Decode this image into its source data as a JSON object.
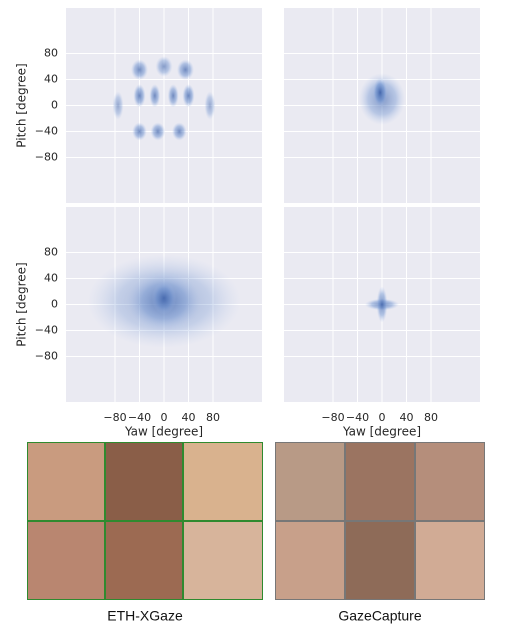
{
  "chart_data": [
    {
      "type": "density2d",
      "color": "#4c72b0",
      "xlim": [
        -160,
        160
      ],
      "ylim": [
        -150,
        150
      ],
      "xticks": [
        -80,
        -40,
        0,
        40,
        80
      ],
      "yticks": [
        80,
        40,
        0,
        -40,
        -80
      ],
      "grid": true,
      "y_label": "Pitch [degree]",
      "ytick_labels": [
        {
          "value": 80,
          "label": "80"
        },
        {
          "value": 40,
          "label": "40"
        },
        {
          "value": 0,
          "label": "0"
        },
        {
          "value": -40,
          "label": "−40"
        },
        {
          "value": -80,
          "label": "−80"
        }
      ],
      "blobs": [
        {
          "x": -75,
          "y": 0,
          "x_spread": 9,
          "y_spread": 22,
          "density": 0.5
        },
        {
          "x": 75,
          "y": 0,
          "x_spread": 9,
          "y_spread": 22,
          "density": 0.5
        },
        {
          "x": -40,
          "y": 55,
          "x_spread": 14,
          "y_spread": 16,
          "density": 0.7
        },
        {
          "x": 0,
          "y": 60,
          "x_spread": 14,
          "y_spread": 16,
          "density": 0.6
        },
        {
          "x": 35,
          "y": 55,
          "x_spread": 14,
          "y_spread": 16,
          "density": 0.7
        },
        {
          "x": -40,
          "y": 15,
          "x_spread": 10,
          "y_spread": 18,
          "density": 0.75
        },
        {
          "x": -15,
          "y": 15,
          "x_spread": 9,
          "y_spread": 18,
          "density": 0.7
        },
        {
          "x": 15,
          "y": 15,
          "x_spread": 9,
          "y_spread": 18,
          "density": 0.7
        },
        {
          "x": 40,
          "y": 15,
          "x_spread": 10,
          "y_spread": 18,
          "density": 0.75
        },
        {
          "x": -40,
          "y": -40,
          "x_spread": 12,
          "y_spread": 14,
          "density": 0.7
        },
        {
          "x": -10,
          "y": -40,
          "x_spread": 12,
          "y_spread": 14,
          "density": 0.7
        },
        {
          "x": 25,
          "y": -40,
          "x_spread": 12,
          "y_spread": 14,
          "density": 0.7
        }
      ]
    },
    {
      "type": "density2d",
      "color": "#4c72b0",
      "xlim": [
        -160,
        160
      ],
      "ylim": [
        -150,
        150
      ],
      "xticks": [
        -80,
        -40,
        0,
        40,
        80
      ],
      "yticks": [
        80,
        40,
        0,
        -40,
        -80
      ],
      "grid": true,
      "blobs": [
        {
          "x": 0,
          "y": 10,
          "x_spread": 38,
          "y_spread": 40,
          "density": 0.6
        },
        {
          "x": -3,
          "y": 20,
          "x_spread": 12,
          "y_spread": 22,
          "density": 0.9
        }
      ]
    },
    {
      "type": "density2d",
      "color": "#4c72b0",
      "xlim": [
        -160,
        160
      ],
      "ylim": [
        -150,
        150
      ],
      "xticks": [
        -80,
        -40,
        0,
        40,
        80
      ],
      "yticks": [
        80,
        40,
        0,
        -40,
        -80
      ],
      "grid": true,
      "y_label": "Pitch [degree]",
      "x_label": "Yaw [degree]",
      "ytick_labels": [
        {
          "value": 80,
          "label": "80"
        },
        {
          "value": 40,
          "label": "40"
        },
        {
          "value": 0,
          "label": "0"
        },
        {
          "value": -40,
          "label": "−40"
        },
        {
          "value": -80,
          "label": "−80"
        }
      ],
      "xtick_labels": [
        {
          "value": -80,
          "label": "−80"
        },
        {
          "value": -40,
          "label": "−40"
        },
        {
          "value": 0,
          "label": "0"
        },
        {
          "value": 40,
          "label": "40"
        },
        {
          "value": 80,
          "label": "80"
        }
      ],
      "blobs": [
        {
          "x": 0,
          "y": 5,
          "x_spread": 125,
          "y_spread": 72,
          "density": 0.45
        },
        {
          "x": 0,
          "y": 5,
          "x_spread": 60,
          "y_spread": 45,
          "density": 0.6
        },
        {
          "x": 0,
          "y": 10,
          "x_spread": 20,
          "y_spread": 25,
          "density": 0.7
        }
      ]
    },
    {
      "type": "density2d",
      "color": "#4c72b0",
      "xlim": [
        -160,
        160
      ],
      "ylim": [
        -150,
        150
      ],
      "xticks": [
        -80,
        -40,
        0,
        40,
        80
      ],
      "yticks": [
        80,
        40,
        0,
        -40,
        -80
      ],
      "grid": true,
      "x_label": "Yaw [degree]",
      "xtick_labels": [
        {
          "value": -80,
          "label": "−80"
        },
        {
          "value": -40,
          "label": "−40"
        },
        {
          "value": 0,
          "label": "0"
        },
        {
          "value": 40,
          "label": "40"
        },
        {
          "value": 80,
          "label": "80"
        }
      ],
      "blobs": [
        {
          "x": 0,
          "y": 0,
          "x_spread": 28,
          "y_spread": 9,
          "density": 0.7
        },
        {
          "x": 0,
          "y": 0,
          "x_spread": 9,
          "y_spread": 28,
          "density": 0.7
        }
      ]
    }
  ],
  "captions": [
    "ETH-XGaze",
    "GazeCapture"
  ]
}
